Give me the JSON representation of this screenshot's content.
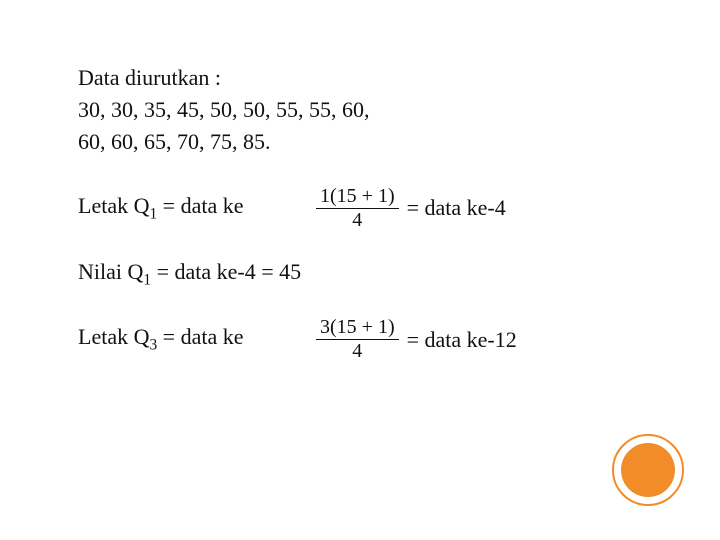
{
  "header": {
    "label": "Data diurutkan :"
  },
  "data_lines": {
    "line1": "30, 30, 35, 45, 50, 50, 55, 55, 60,",
    "line2": "60, 60, 65, 70, 75, 85."
  },
  "q1_row": {
    "left": "Letak Q",
    "sub": "1",
    "left_rest": " = data ke",
    "fraction_num": "1(15 + 1)",
    "fraction_den": "4",
    "result": "= data ke-4"
  },
  "nilai_line": {
    "left": "Nilai Q",
    "sub": "1",
    "rest": "  = data ke-4 = 45"
  },
  "q3_row": {
    "left": "Letak Q",
    "sub": "3",
    "left_rest": " = data ke",
    "fraction_num": "3(15 + 1)",
    "fraction_den": "4",
    "result": "= data ke-12"
  },
  "decor": {
    "ring_color": "#f28c28",
    "disc_color": "#f28c28"
  }
}
